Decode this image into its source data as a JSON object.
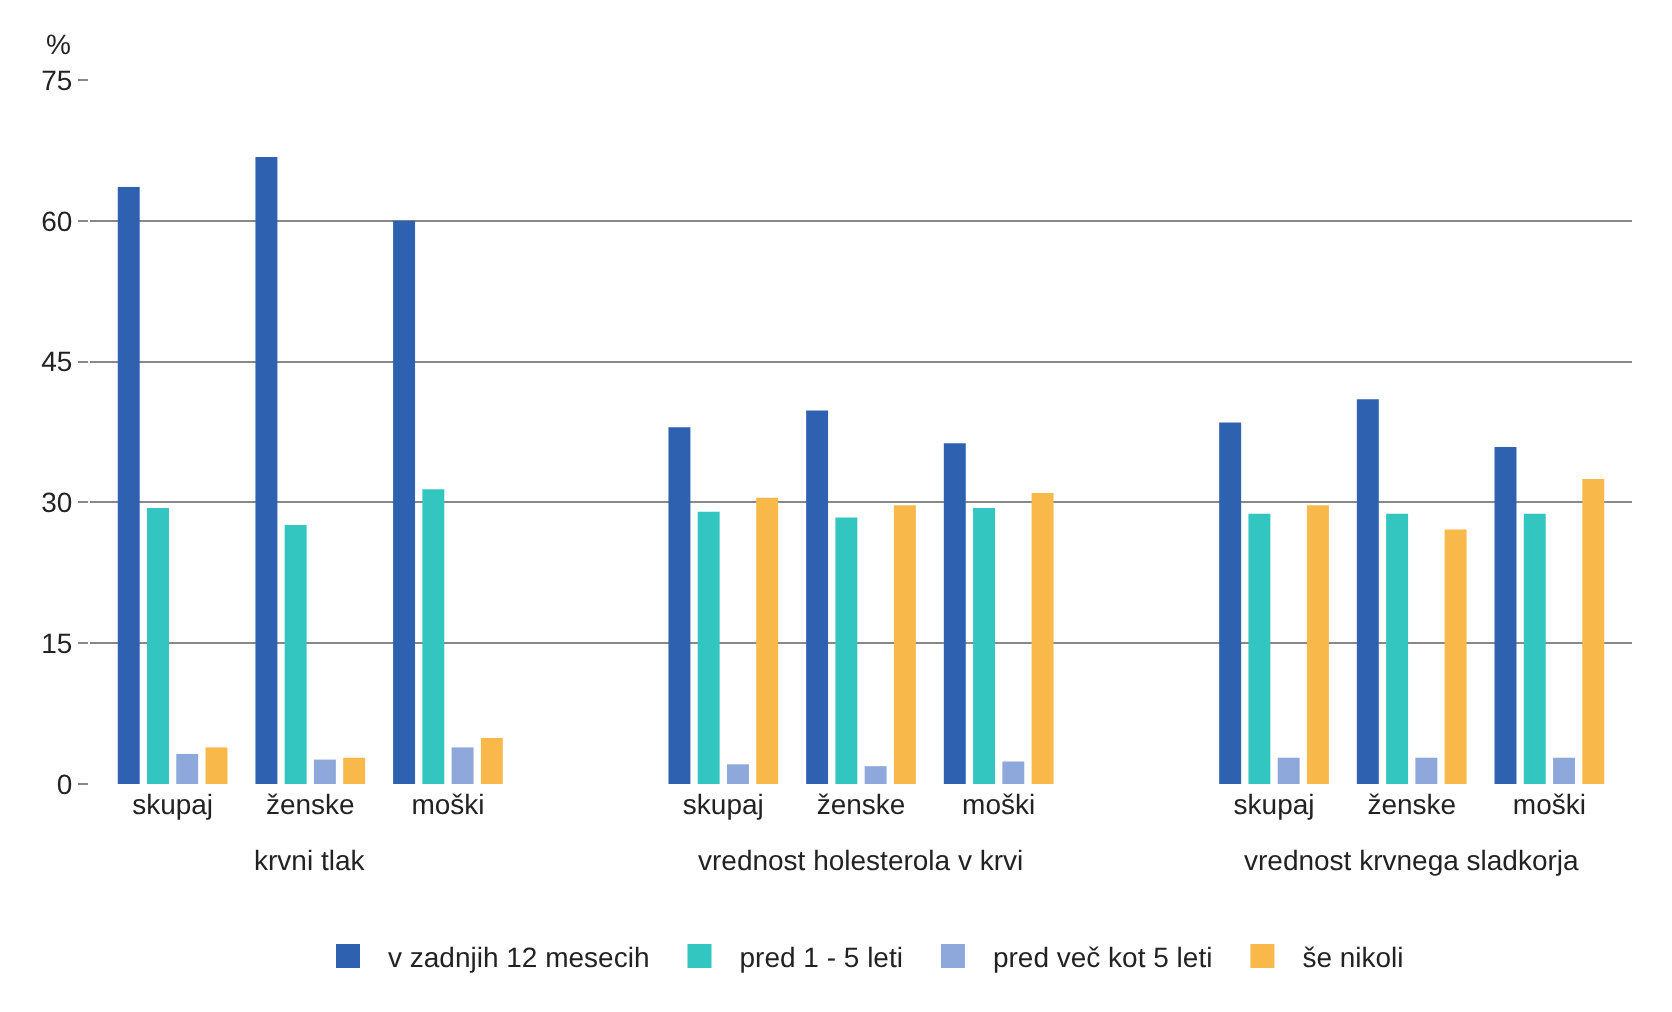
{
  "chart_data": {
    "type": "bar",
    "ylabel": "%",
    "categories": [
      "skupaj",
      "ženske",
      "moški",
      null,
      "skupaj",
      "ženske",
      "moški",
      null,
      "skupaj",
      "ženske",
      "moški"
    ],
    "series": [
      {
        "name": "v zadnjih 12 mesecih",
        "color": "#2e62b0",
        "values": [
          63.6,
          66.8,
          60,
          null,
          38,
          39.8,
          36.3,
          null,
          38.5,
          41,
          35.9
        ]
      },
      {
        "name": "pred 1 - 5 leti",
        "color": "#33c6c0",
        "values": [
          29.4,
          27.6,
          31.4,
          null,
          29,
          28.4,
          29.4,
          null,
          28.8,
          28.8,
          28.8
        ]
      },
      {
        "name": "pred več kot 5 leti",
        "color": "#8fa8dc",
        "values": [
          3.2,
          2.6,
          3.9,
          null,
          2.1,
          1.9,
          2.4,
          null,
          2.8,
          2.8,
          2.8
        ]
      },
      {
        "name": "še nikoli",
        "color": "#f8b84a",
        "values": [
          3.9,
          2.8,
          4.9,
          null,
          30.5,
          29.7,
          31,
          null,
          29.7,
          27.1,
          32.5
        ]
      }
    ],
    "annotations": [
      "krvni tlak",
      "vrednost holesterola v krvi",
      "vrednost krvnega sladkorja"
    ],
    "ylim": [
      0,
      75
    ],
    "yticks": [
      0,
      15,
      30,
      45,
      60,
      75
    ],
    "grid": "y",
    "legend": "bottom"
  }
}
